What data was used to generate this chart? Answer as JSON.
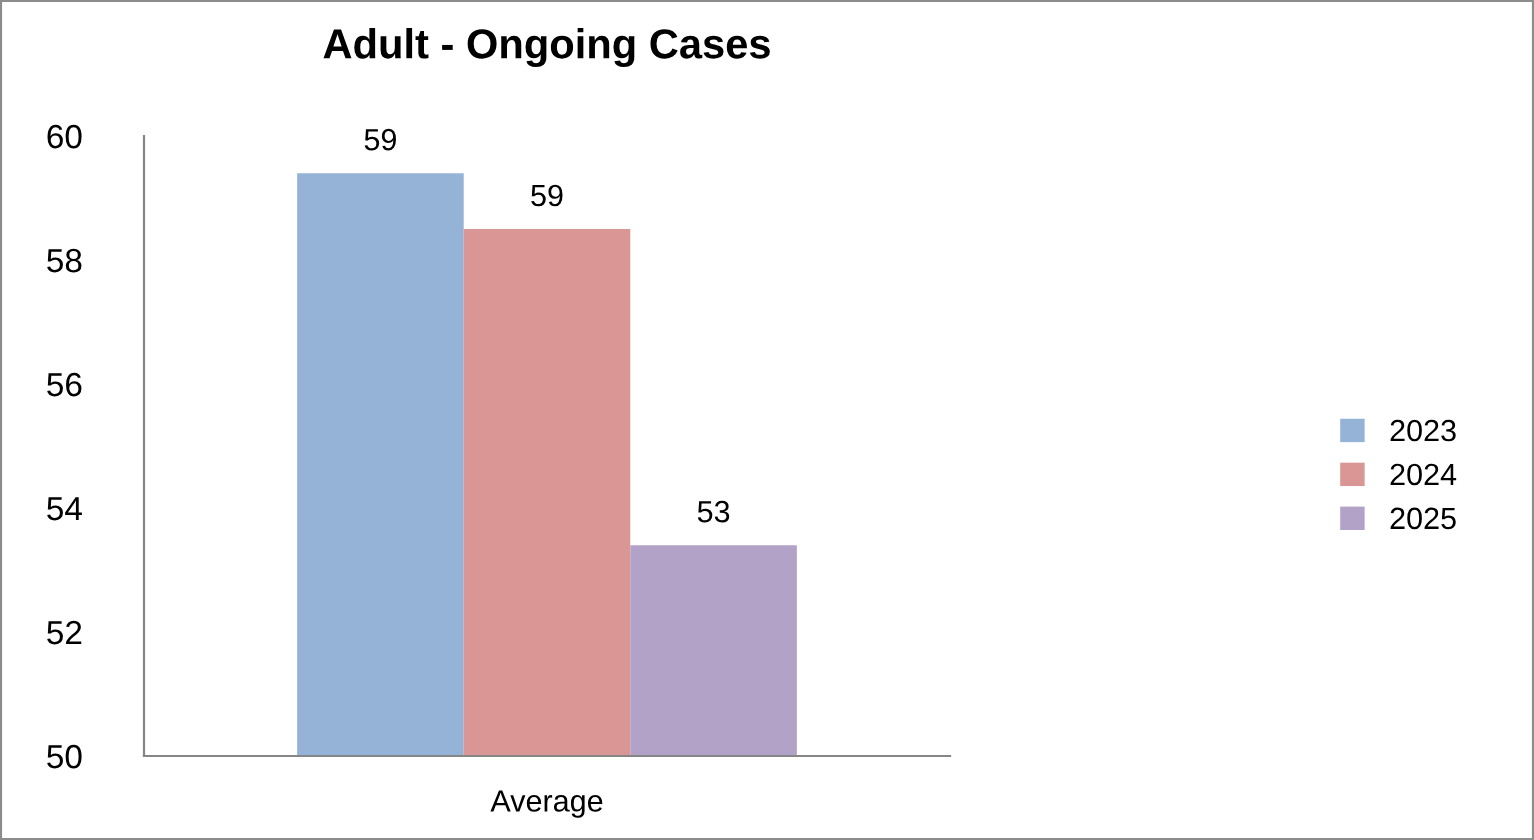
{
  "chart_data": {
    "type": "bar",
    "title": "Adult - Ongoing Cases",
    "categories": [
      "Average"
    ],
    "series": [
      {
        "name": "2023",
        "color": "#95b3d7",
        "values": [
          59.4
        ],
        "value_labels": [
          "59"
        ]
      },
      {
        "name": "2024",
        "color": "#d99694",
        "values": [
          58.5
        ],
        "value_labels": [
          "59"
        ]
      },
      {
        "name": "2025",
        "color": "#b3a2c7",
        "values": [
          53.4
        ],
        "value_labels": [
          "53"
        ]
      }
    ],
    "ylim": [
      50,
      60
    ],
    "yticks": [
      50,
      52,
      54,
      56,
      58,
      60
    ],
    "grid": false,
    "legend": "right"
  }
}
